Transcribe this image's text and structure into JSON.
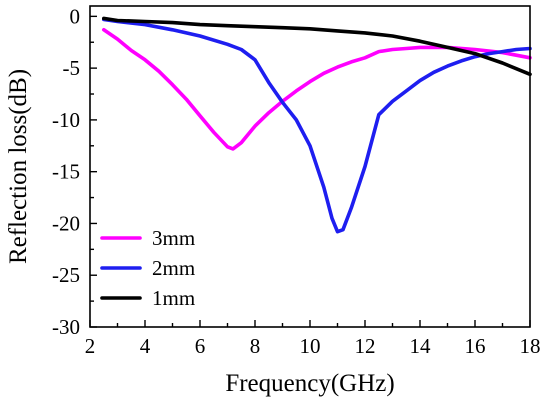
{
  "chart_data": {
    "type": "line",
    "title": "",
    "xlabel": "Frequency(GHz)",
    "ylabel": "Reflection loss(dB)",
    "xlim": [
      2,
      18
    ],
    "ylim": [
      -30,
      1
    ],
    "x_ticks": [
      "2",
      "4",
      "6",
      "8",
      "10",
      "12",
      "14",
      "16",
      "18"
    ],
    "y_ticks": [
      "0",
      "-5",
      "-10",
      "-15",
      "-20",
      "-25",
      "-30"
    ],
    "grid": false,
    "legend_position": "bottom-left",
    "series": [
      {
        "name": "3mm",
        "color": "#ff00ff",
        "points": [
          [
            2.5,
            -1.3
          ],
          [
            3.0,
            -2.2
          ],
          [
            3.5,
            -3.3
          ],
          [
            4.0,
            -4.2
          ],
          [
            4.5,
            -5.3
          ],
          [
            5.0,
            -6.6
          ],
          [
            5.5,
            -8.0
          ],
          [
            6.0,
            -9.6
          ],
          [
            6.5,
            -11.2
          ],
          [
            7.0,
            -12.6
          ],
          [
            7.2,
            -12.8
          ],
          [
            7.5,
            -12.2
          ],
          [
            8.0,
            -10.6
          ],
          [
            8.5,
            -9.3
          ],
          [
            9.0,
            -8.2
          ],
          [
            9.5,
            -7.2
          ],
          [
            10.0,
            -6.3
          ],
          [
            10.5,
            -5.5
          ],
          [
            11.0,
            -4.9
          ],
          [
            11.5,
            -4.4
          ],
          [
            12.0,
            -4.0
          ],
          [
            12.5,
            -3.4
          ],
          [
            13.0,
            -3.2
          ],
          [
            13.5,
            -3.1
          ],
          [
            14.0,
            -3.0
          ],
          [
            15.0,
            -3.0
          ],
          [
            16.0,
            -3.2
          ],
          [
            17.0,
            -3.5
          ],
          [
            18.0,
            -4.0
          ]
        ]
      },
      {
        "name": "2mm",
        "color": "#1e1ef0",
        "points": [
          [
            2.5,
            -0.3
          ],
          [
            3.0,
            -0.5
          ],
          [
            4.0,
            -0.8
          ],
          [
            5.0,
            -1.3
          ],
          [
            6.0,
            -1.9
          ],
          [
            7.0,
            -2.7
          ],
          [
            7.5,
            -3.2
          ],
          [
            8.0,
            -4.2
          ],
          [
            8.5,
            -6.4
          ],
          [
            9.0,
            -8.3
          ],
          [
            9.5,
            -10.0
          ],
          [
            10.0,
            -12.5
          ],
          [
            10.5,
            -16.5
          ],
          [
            10.8,
            -19.5
          ],
          [
            11.0,
            -20.8
          ],
          [
            11.2,
            -20.6
          ],
          [
            11.5,
            -18.5
          ],
          [
            12.0,
            -14.5
          ],
          [
            12.5,
            -9.5
          ],
          [
            13.0,
            -8.2
          ],
          [
            13.5,
            -7.2
          ],
          [
            14.0,
            -6.2
          ],
          [
            14.5,
            -5.4
          ],
          [
            15.0,
            -4.8
          ],
          [
            15.5,
            -4.3
          ],
          [
            16.0,
            -3.9
          ],
          [
            16.5,
            -3.6
          ],
          [
            17.0,
            -3.4
          ],
          [
            17.5,
            -3.2
          ],
          [
            18.0,
            -3.1
          ]
        ]
      },
      {
        "name": "1mm",
        "color": "#000000",
        "points": [
          [
            2.5,
            -0.2
          ],
          [
            3.0,
            -0.4
          ],
          [
            4.0,
            -0.5
          ],
          [
            5.0,
            -0.6
          ],
          [
            6.0,
            -0.8
          ],
          [
            7.0,
            -0.9
          ],
          [
            8.0,
            -1.0
          ],
          [
            9.0,
            -1.1
          ],
          [
            10.0,
            -1.2
          ],
          [
            11.0,
            -1.4
          ],
          [
            12.0,
            -1.6
          ],
          [
            13.0,
            -1.9
          ],
          [
            14.0,
            -2.4
          ],
          [
            15.0,
            -3.0
          ],
          [
            16.0,
            -3.6
          ],
          [
            17.0,
            -4.5
          ],
          [
            18.0,
            -5.6
          ]
        ]
      }
    ]
  }
}
